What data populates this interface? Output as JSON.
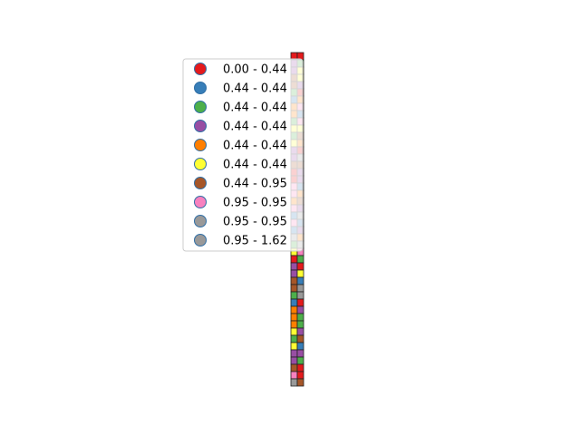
{
  "chart_data": {
    "type": "choropleth",
    "title": "",
    "legend": {
      "placement": "upper-left",
      "classes": [
        {
          "label": "0.00 - 0.44",
          "color": "#e41a1c"
        },
        {
          "label": "0.44 - 0.44",
          "color": "#377eb8"
        },
        {
          "label": "0.44 - 0.44",
          "color": "#4daf4a"
        },
        {
          "label": "0.44 - 0.44",
          "color": "#984ea3"
        },
        {
          "label": "0.44 - 0.44",
          "color": "#ff7f00"
        },
        {
          "label": "0.44 - 0.44",
          "color": "#ffff33"
        },
        {
          "label": "0.44 - 0.95",
          "color": "#a65628"
        },
        {
          "label": "0.95 - 0.95",
          "color": "#f781bf"
        },
        {
          "label": "0.95 - 0.95",
          "color": "#999999"
        },
        {
          "label": "0.95 - 1.62",
          "color": "#999999"
        }
      ]
    },
    "grid": {
      "columns": 2,
      "rows": 46,
      "cell_classes": [
        [
          0,
          0
        ],
        [
          3,
          2
        ],
        [
          3,
          5
        ],
        [
          6,
          5
        ],
        [
          6,
          3
        ],
        [
          2,
          0
        ],
        [
          1,
          4
        ],
        [
          4,
          7
        ],
        [
          4,
          1
        ],
        [
          2,
          7
        ],
        [
          5,
          5
        ],
        [
          2,
          6
        ],
        [
          5,
          4
        ],
        [
          3,
          0
        ],
        [
          3,
          9
        ],
        [
          6,
          6
        ],
        [
          0,
          3
        ],
        [
          0,
          3
        ],
        [
          7,
          1
        ],
        [
          7,
          4
        ],
        [
          4,
          6
        ],
        [
          7,
          3
        ],
        [
          1,
          8
        ],
        [
          7,
          1
        ],
        [
          1,
          3
        ],
        [
          8,
          4
        ],
        [
          2,
          9
        ],
        [
          5,
          7
        ],
        [
          0,
          2
        ],
        [
          3,
          0
        ],
        [
          3,
          5
        ],
        [
          6,
          1
        ],
        [
          6,
          9
        ],
        [
          2,
          8
        ],
        [
          1,
          0
        ],
        [
          4,
          3
        ],
        [
          4,
          2
        ],
        [
          4,
          2
        ],
        [
          5,
          3
        ],
        [
          2,
          6
        ],
        [
          5,
          1
        ],
        [
          3,
          3
        ],
        [
          3,
          2
        ],
        [
          6,
          0
        ],
        [
          7,
          0
        ],
        [
          9,
          6
        ]
      ]
    }
  }
}
